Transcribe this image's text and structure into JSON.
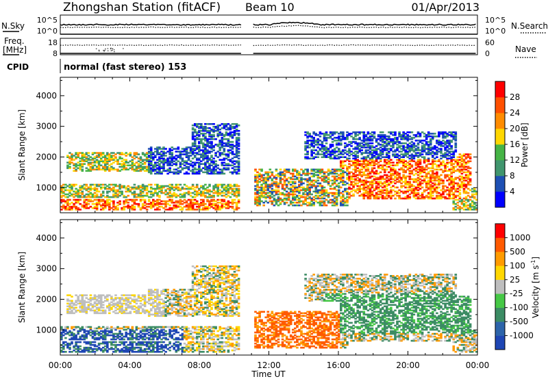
{
  "header": {
    "station": "Zhongshan Station (fitACF)",
    "beam": "Beam 10",
    "date": "01/Apr/2013"
  },
  "panel_top": {
    "left_label": "N.Sky",
    "right_label": "N.Search",
    "left_ticks": [
      "10^5",
      "10^0"
    ],
    "right_ticks": [
      "10^5",
      "10^0"
    ]
  },
  "panel_freq": {
    "left_label_1": "Freq.",
    "left_label_2": "[MHz]",
    "right_label": "Nave",
    "left_ticks": [
      "18",
      "8"
    ],
    "right_ticks": [
      "60",
      "0"
    ]
  },
  "cpid": {
    "label": "CPID",
    "text": "normal (fast stereo) 153"
  },
  "time_axis": {
    "xlabel": "Time UT",
    "ticks": [
      "00:00",
      "04:00",
      "08:00",
      "12:00",
      "16:00",
      "20:00",
      "00:00"
    ]
  },
  "chart_data": [
    {
      "type": "heatmap",
      "name": "power",
      "ylabel": "Slant Range [km]",
      "ylim": [
        180,
        4600
      ],
      "yticks": [
        1000,
        2000,
        3000,
        4000
      ],
      "x_range_hours": [
        0,
        24
      ],
      "data_gap_hours": [
        10.4,
        11.0
      ],
      "colorbar_label": "Power [dB]",
      "colorbar_ticks": [
        "4",
        "8",
        "12",
        "16",
        "20",
        "24",
        "28"
      ],
      "colorbar_colors": [
        "#0000ff",
        "#1e50b4",
        "#41966e",
        "#46b446",
        "#ffd700",
        "#ff8c00",
        "#ff5000",
        "#ff0000"
      ]
    },
    {
      "type": "heatmap",
      "name": "velocity",
      "ylabel": "Slant Range [km]",
      "ylim": [
        180,
        4600
      ],
      "yticks": [
        1000,
        2000,
        3000,
        4000
      ],
      "x_range_hours": [
        0,
        24
      ],
      "data_gap_hours": [
        10.4,
        11.0
      ],
      "colorbar_label": "Velocity [m s",
      "colorbar_label_sup": "-1",
      "colorbar_ticks": [
        "1000",
        "500",
        "100",
        "25",
        "-25",
        "-100",
        "-500",
        "-1000"
      ],
      "colorbar_colors": [
        "#1e46b4",
        "#2d64aa",
        "#3c8c64",
        "#46c846",
        "#bebebe",
        "#ffd700",
        "#ff9b00",
        "#ff5a00",
        "#ff0000"
      ]
    }
  ]
}
